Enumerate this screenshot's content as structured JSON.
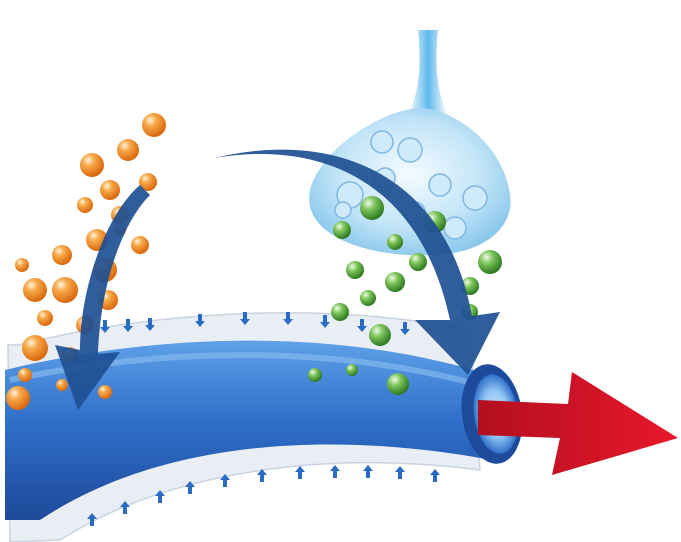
{
  "diagram": {
    "background": "#ffffff",
    "colors": {
      "tube_dark": "#1d4a9a",
      "tube_mid": "#2f6fc9",
      "tube_light": "#5fa0e8",
      "tube_inner": "#8fc4f2",
      "sheath": "#e9eef5",
      "sheath_edge": "#c9d3e0",
      "small_arrow": "#2a6cc4",
      "big_arrow": "#1e4f93",
      "orange": "#f08a24",
      "green": "#58a83a",
      "vesicle": "#9fd3f2",
      "output_arrow": "#e0182a"
    },
    "elements": [
      {
        "name": "vessel-tube",
        "kind": "tube"
      },
      {
        "name": "vessel-sheath",
        "kind": "sheath"
      },
      {
        "name": "orange-particles",
        "kind": "particle-group",
        "color_key": "orange"
      },
      {
        "name": "green-particles",
        "kind": "particle-group",
        "color_key": "green"
      },
      {
        "name": "nerve-terminal",
        "kind": "vesicle"
      },
      {
        "name": "left-curved-arrow",
        "kind": "arrow"
      },
      {
        "name": "right-curved-arrow",
        "kind": "arrow"
      },
      {
        "name": "output-arrow",
        "kind": "arrow"
      }
    ]
  }
}
